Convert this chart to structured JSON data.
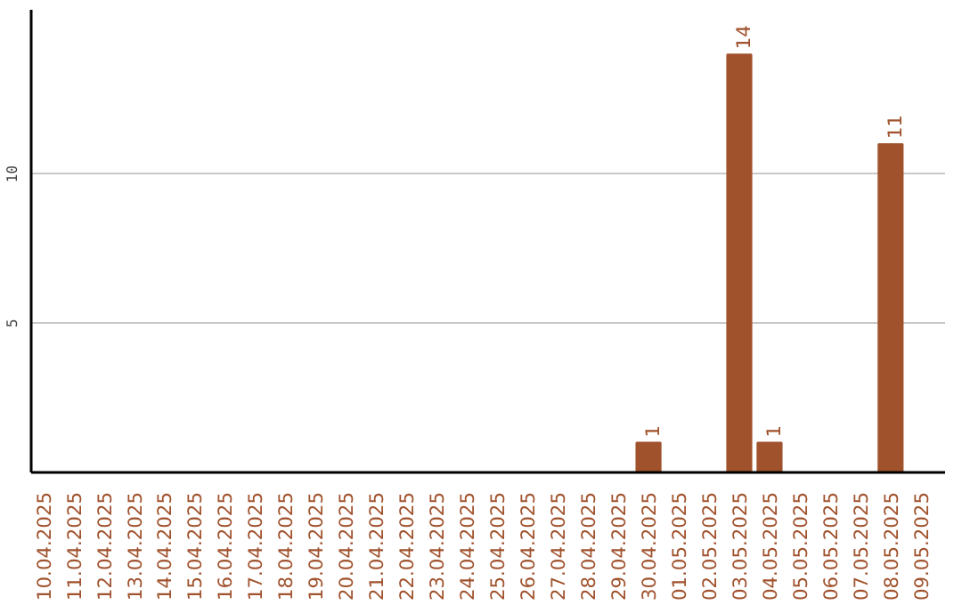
{
  "chart_data": {
    "type": "bar",
    "categories": [
      "10.04.2025",
      "11.04.2025",
      "12.04.2025",
      "13.04.2025",
      "14.04.2025",
      "15.04.2025",
      "16.04.2025",
      "17.04.2025",
      "18.04.2025",
      "19.04.2025",
      "20.04.2025",
      "21.04.2025",
      "22.04.2025",
      "23.04.2025",
      "24.04.2025",
      "25.04.2025",
      "26.04.2025",
      "27.04.2025",
      "28.04.2025",
      "29.04.2025",
      "30.04.2025",
      "01.05.2025",
      "02.05.2025",
      "03.05.2025",
      "04.05.2025",
      "05.05.2025",
      "06.05.2025",
      "07.05.2025",
      "08.05.2025",
      "09.05.2025"
    ],
    "values": [
      0,
      0,
      0,
      0,
      0,
      0,
      0,
      0,
      0,
      0,
      0,
      0,
      0,
      0,
      0,
      0,
      0,
      0,
      0,
      0,
      1,
      0,
      0,
      14,
      1,
      0,
      0,
      0,
      11,
      0
    ],
    "value_labels": [
      null,
      null,
      null,
      null,
      null,
      null,
      null,
      null,
      null,
      null,
      null,
      null,
      null,
      null,
      null,
      null,
      null,
      null,
      null,
      null,
      "1",
      null,
      null,
      "14",
      "1",
      null,
      null,
      null,
      "11",
      null
    ],
    "color": "#a0522d",
    "ylim": [
      0,
      15.5
    ],
    "yticks": [
      5,
      10
    ],
    "grid": "y"
  }
}
